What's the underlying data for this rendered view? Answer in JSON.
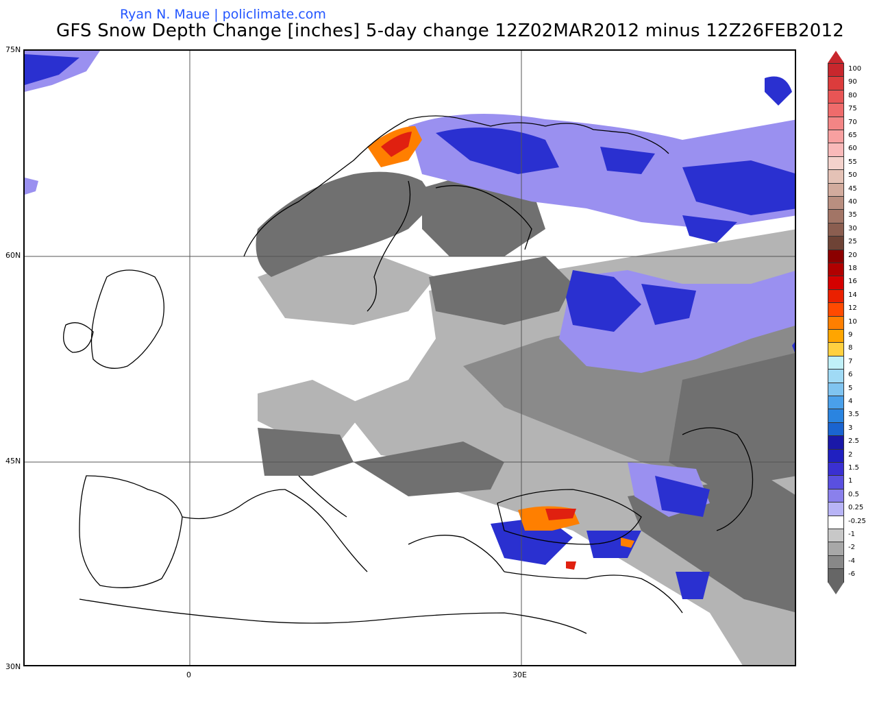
{
  "header": {
    "credit": "Ryan N. Maue | policlimate.com",
    "title": "GFS Snow Depth Change [inches] 5-day change 12Z02MAR2012 minus 12Z26FEB2012"
  },
  "axes": {
    "lat_labels": [
      "75N",
      "60N",
      "45N",
      "30N"
    ],
    "lon_labels": [
      "0",
      "30E"
    ]
  },
  "legend": {
    "labels": [
      "100",
      "90",
      "80",
      "75",
      "70",
      "65",
      "60",
      "55",
      "50",
      "45",
      "40",
      "35",
      "30",
      "25",
      "20",
      "18",
      "16",
      "14",
      "12",
      "10",
      "9",
      "8",
      "7",
      "6",
      "5",
      "4",
      "3.5",
      "3",
      "2.5",
      "2",
      "1.5",
      "1",
      "0.5",
      "0.25",
      "-0.25",
      "-1",
      "-2",
      "-4",
      "-6"
    ],
    "colors": [
      "#c8272d",
      "#dc3c3c",
      "#e85555",
      "#ef6b6b",
      "#f38585",
      "#f7a0a0",
      "#f9b9b9",
      "#f4d2cc",
      "#e4c2b6",
      "#d2ab9d",
      "#b98f80",
      "#a27566",
      "#8b5e50",
      "#6e4336",
      "#8b0000",
      "#b00000",
      "#d40000",
      "#ea2000",
      "#ff4a00",
      "#ff7f00",
      "#ffa500",
      "#ffd040",
      "#c0f0f8",
      "#a0daf5",
      "#80c4f0",
      "#4aa0ea",
      "#2a84e0",
      "#1a64d0",
      "#1a18a8",
      "#2020c0",
      "#3a30d2",
      "#5a50e0",
      "#8a80ec",
      "#b8b4f6",
      "#ffffff",
      "#c8c8c8",
      "#a8a8a8",
      "#888888",
      "#666666"
    ]
  },
  "colors": {
    "heavy_snow_gain": "#e02010",
    "moderate_snow_gain": "#2a30d0",
    "light_snow_gain": "#9a90f0",
    "snow_loss": "#707070",
    "light_snow_loss": "#b4b4b4"
  }
}
